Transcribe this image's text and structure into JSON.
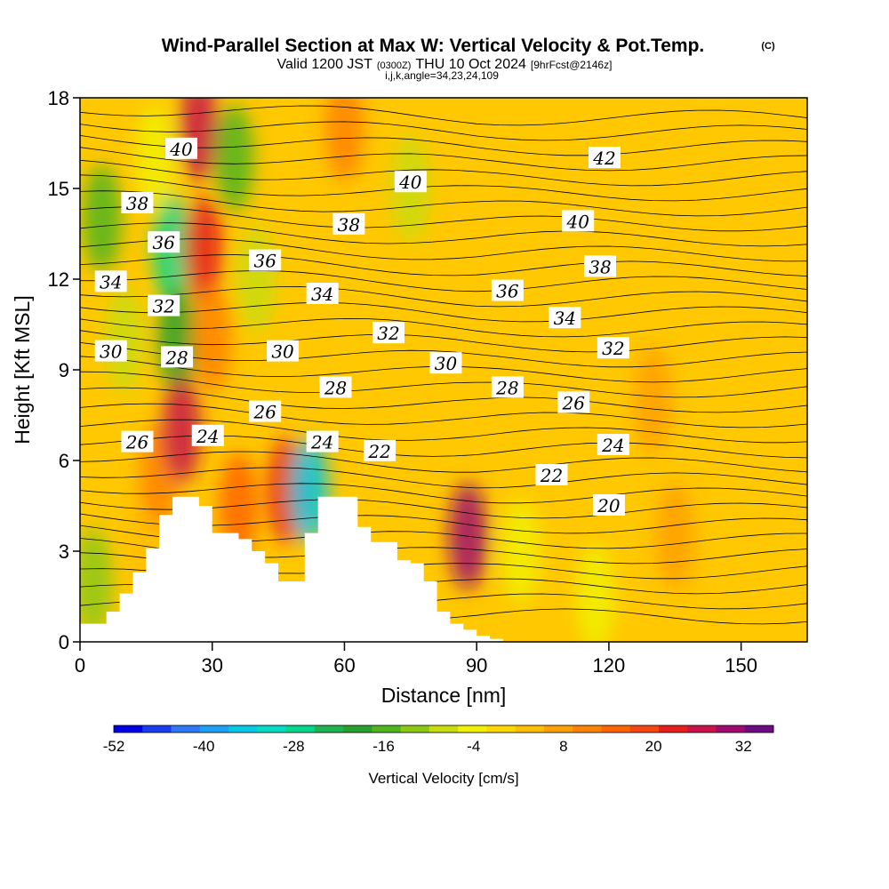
{
  "title": {
    "main": "Wind-Parallel Section at Max W: Vertical Velocity & Pot.Temp.",
    "copyright": "(C)",
    "valid_a": "Valid 1200 JST",
    "valid_b": "(0300Z)",
    "valid_c": "THU 10 Oct 2024",
    "valid_d": "[9hrFcst@2146z]",
    "params": "i,j,k,angle=34,23,24,109"
  },
  "chart_data": {
    "type": "heatmap",
    "title": "Wind-Parallel Section at Max W: Vertical Velocity & Pot.Temp.",
    "xlabel": "Distance [nm]",
    "ylabel": "Height [Kft MSL]",
    "xlim": [
      0,
      165
    ],
    "ylim": [
      0,
      18
    ],
    "x_ticks": [
      0,
      30,
      60,
      90,
      120,
      150
    ],
    "y_ticks": [
      0,
      3,
      6,
      9,
      12,
      15,
      18
    ],
    "x_tick_labels": [
      "0",
      "30",
      "60",
      "90",
      "120",
      "150"
    ],
    "y_tick_labels": [
      "0",
      "3",
      "6",
      "9",
      "12",
      "15",
      "18"
    ],
    "colorbar": {
      "label": "Vertical Velocity [cm/s]",
      "min": -52,
      "max": 36,
      "step": 4,
      "tick_values": [
        -52,
        -40,
        -28,
        -16,
        -4,
        8,
        20,
        32
      ],
      "tick_labels": [
        "-52",
        "-40",
        "-28",
        "-16",
        "-4",
        "8",
        "20",
        "32"
      ],
      "colors": [
        "#0000e6",
        "#1a3cf0",
        "#2d78f5",
        "#1ea0f5",
        "#00c8e6",
        "#00dcc3",
        "#00d78c",
        "#1eb450",
        "#28a02d",
        "#50b41e",
        "#8cc814",
        "#c8dc0a",
        "#f0f000",
        "#ffd700",
        "#ffbe00",
        "#ffa000",
        "#ff8200",
        "#ff6400",
        "#f54614",
        "#e61e1e",
        "#c8144b",
        "#a00a6e",
        "#6e0a82"
      ]
    },
    "vertical_velocity_cells": [
      {
        "x": 3,
        "y": 2,
        "w": -10
      },
      {
        "x": 5,
        "y": 14,
        "w": -14
      },
      {
        "x": 10,
        "y": 10,
        "w": -8
      },
      {
        "x": 15,
        "y": 3.5,
        "w": 4
      },
      {
        "x": 17,
        "y": 16,
        "w": -4
      },
      {
        "x": 18,
        "y": 5.5,
        "w": 12
      },
      {
        "x": 21,
        "y": 13,
        "w": -26
      },
      {
        "x": 22,
        "y": 10,
        "w": -20
      },
      {
        "x": 23,
        "y": 7,
        "w": 30
      },
      {
        "x": 27,
        "y": 17,
        "w": 28
      },
      {
        "x": 28,
        "y": 13,
        "w": 24
      },
      {
        "x": 30,
        "y": 10,
        "w": 12
      },
      {
        "x": 35,
        "y": 16,
        "w": -16
      },
      {
        "x": 36,
        "y": 4.5,
        "w": 16
      },
      {
        "x": 40,
        "y": 12,
        "w": -6
      },
      {
        "x": 47,
        "y": 5,
        "w": 26
      },
      {
        "x": 52,
        "y": 5,
        "w": -36
      },
      {
        "x": 60,
        "y": 17,
        "w": 12
      },
      {
        "x": 75,
        "y": 15,
        "w": -8
      },
      {
        "x": 88,
        "y": 3.5,
        "w": 34
      },
      {
        "x": 100,
        "y": 3,
        "w": -4
      },
      {
        "x": 117,
        "y": 1.5,
        "w": -2
      },
      {
        "x": 130,
        "y": 8,
        "w": 10
      },
      {
        "x": 135,
        "y": 3.5,
        "w": 10
      }
    ],
    "potential_temperature_labels": [
      {
        "x": 23,
        "y": 16.3,
        "label": "40"
      },
      {
        "x": 13,
        "y": 14.5,
        "label": "38"
      },
      {
        "x": 19,
        "y": 13.2,
        "label": "36"
      },
      {
        "x": 7,
        "y": 11.9,
        "label": "34"
      },
      {
        "x": 19,
        "y": 11.1,
        "label": "32"
      },
      {
        "x": 7,
        "y": 9.6,
        "label": "30"
      },
      {
        "x": 22,
        "y": 9.4,
        "label": "28"
      },
      {
        "x": 13,
        "y": 6.6,
        "label": "26"
      },
      {
        "x": 29,
        "y": 6.8,
        "label": "24"
      },
      {
        "x": 75,
        "y": 15.2,
        "label": "40"
      },
      {
        "x": 61,
        "y": 13.8,
        "label": "38"
      },
      {
        "x": 42,
        "y": 12.6,
        "label": "36"
      },
      {
        "x": 55,
        "y": 11.5,
        "label": "34"
      },
      {
        "x": 46,
        "y": 9.6,
        "label": "30"
      },
      {
        "x": 58,
        "y": 8.4,
        "label": "28"
      },
      {
        "x": 42,
        "y": 7.6,
        "label": "26"
      },
      {
        "x": 55,
        "y": 6.6,
        "label": "24"
      },
      {
        "x": 68,
        "y": 6.3,
        "label": "22"
      },
      {
        "x": 70,
        "y": 10.2,
        "label": "32"
      },
      {
        "x": 83,
        "y": 9.2,
        "label": "30"
      },
      {
        "x": 97,
        "y": 11.6,
        "label": "36"
      },
      {
        "x": 110,
        "y": 10.7,
        "label": "34"
      },
      {
        "x": 97,
        "y": 8.4,
        "label": "28"
      },
      {
        "x": 112,
        "y": 7.9,
        "label": "26"
      },
      {
        "x": 119,
        "y": 16.0,
        "label": "42"
      },
      {
        "x": 113,
        "y": 13.9,
        "label": "40"
      },
      {
        "x": 118,
        "y": 12.4,
        "label": "38"
      },
      {
        "x": 121,
        "y": 9.7,
        "label": "32"
      },
      {
        "x": 121,
        "y": 6.5,
        "label": "24"
      },
      {
        "x": 107,
        "y": 5.5,
        "label": "22"
      },
      {
        "x": 120,
        "y": 4.5,
        "label": "20"
      }
    ],
    "terrain_profile": {
      "x": [
        0,
        3,
        6,
        9,
        12,
        15,
        18,
        21,
        24,
        27,
        30,
        33,
        36,
        39,
        42,
        45,
        48,
        51,
        54,
        57,
        60,
        63,
        66,
        69,
        72,
        75,
        78,
        81,
        84,
        87,
        90,
        93
      ],
      "height": [
        0.6,
        0.6,
        1.0,
        1.6,
        2.3,
        3.1,
        4.2,
        4.8,
        4.8,
        4.5,
        3.6,
        3.6,
        3.4,
        3.0,
        2.6,
        2.0,
        2.0,
        3.6,
        4.8,
        4.8,
        4.8,
        3.8,
        3.3,
        3.3,
        2.7,
        2.6,
        2.0,
        1.0,
        0.6,
        0.4,
        0.2,
        0.1
      ]
    }
  }
}
